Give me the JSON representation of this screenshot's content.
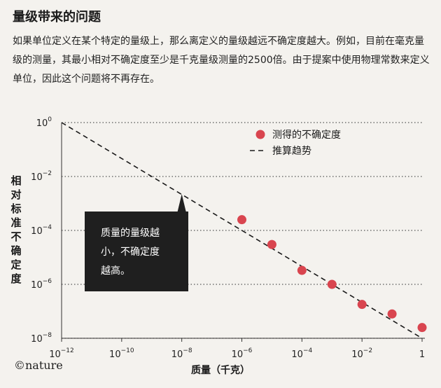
{
  "header": {
    "title": "量级带来的问题",
    "description": "如果单位定义在某个特定的量级上，那么离定义的量级越远不确定度越大。例如，目前在毫克量级的测量，其最小相对不确定度至少是千克量级测量的2500倍。由于提案中使用物理常数来定义单位，因此这个问题将不再存在。"
  },
  "footer": {
    "source": "©nature"
  },
  "chart_data": {
    "type": "scatter",
    "x_scale": "log10",
    "y_scale": "log10",
    "xlabel": "质量（千克）",
    "ylabel": "相对标准不确定度",
    "xlim": [
      1e-12,
      1
    ],
    "ylim": [
      1e-08,
      1
    ],
    "x_ticks": [
      {
        "value": 1e-12,
        "base": "10",
        "exp": "−12"
      },
      {
        "value": 1e-10,
        "base": "10",
        "exp": "−10"
      },
      {
        "value": 1e-08,
        "base": "10",
        "exp": "−8"
      },
      {
        "value": 1e-06,
        "base": "10",
        "exp": "−6"
      },
      {
        "value": 0.0001,
        "base": "10",
        "exp": "−4"
      },
      {
        "value": 0.01,
        "base": "10",
        "exp": "−2"
      },
      {
        "value": 1,
        "base": "1",
        "exp": ""
      }
    ],
    "y_ticks": [
      {
        "value": 1,
        "base": "10",
        "exp": "0"
      },
      {
        "value": 0.01,
        "base": "10",
        "exp": "−2"
      },
      {
        "value": 0.0001,
        "base": "10",
        "exp": "−4"
      },
      {
        "value": 1e-06,
        "base": "10",
        "exp": "−6"
      },
      {
        "value": 1e-08,
        "base": "10",
        "exp": "−8"
      }
    ],
    "grid": "horizontal dotted",
    "legend_position": "top-right",
    "series": [
      {
        "name": "测得的不确定度",
        "kind": "points",
        "color": "#d9454f",
        "x": [
          1e-06,
          1e-05,
          0.0001,
          0.001,
          0.01,
          0.1,
          1
        ],
        "y": [
          0.00025,
          3e-05,
          3.3e-06,
          1e-06,
          1.8e-07,
          8e-08,
          2.5e-08
        ]
      },
      {
        "name": "推算趋势",
        "kind": "dashed-line",
        "color": "#1a1a1a",
        "x": [
          1e-12,
          1
        ],
        "y": [
          1,
          1e-08
        ]
      }
    ],
    "annotation": {
      "text_lines": [
        "质量的量级越",
        "小，不确定度",
        "越高。"
      ],
      "x": 1e-08,
      "y": 0.0025
    }
  }
}
